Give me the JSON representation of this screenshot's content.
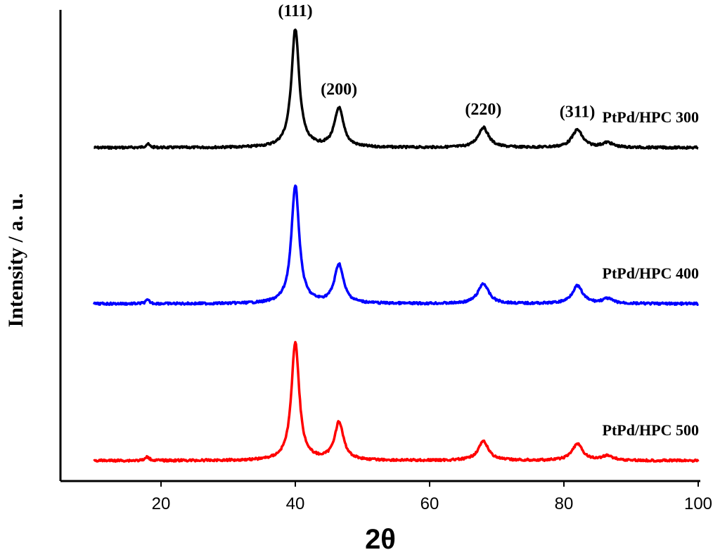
{
  "chart_data": {
    "type": "line",
    "title": "",
    "xlabel": "2θ",
    "ylabel": "Intensity / a. u.",
    "xlim": [
      5,
      100
    ],
    "xticks": [
      20,
      40,
      60,
      80,
      100
    ],
    "y_ticks_shown": false,
    "grid": false,
    "legend": "none",
    "peak_annotations": [
      {
        "label": "(111)",
        "x": 40.0
      },
      {
        "label": "(200)",
        "x": 46.5
      },
      {
        "label": "(220)",
        "x": 68.0
      },
      {
        "label": "(311)",
        "x": 82.0
      }
    ],
    "series": [
      {
        "name": "PtPd/HPC 300",
        "color": "#000000",
        "offset": 2.0,
        "peaks": [
          {
            "x": 18.0,
            "height": 0.03
          },
          {
            "x": 40.0,
            "height": 1.0
          },
          {
            "x": 46.5,
            "height": 0.33
          },
          {
            "x": 68.0,
            "height": 0.17
          },
          {
            "x": 82.0,
            "height": 0.15
          },
          {
            "x": 86.5,
            "height": 0.04
          }
        ]
      },
      {
        "name": "PtPd/HPC 400",
        "color": "#0000ff",
        "offset": 1.0,
        "peaks": [
          {
            "x": 18.0,
            "height": 0.03
          },
          {
            "x": 40.0,
            "height": 1.0
          },
          {
            "x": 46.5,
            "height": 0.33
          },
          {
            "x": 68.0,
            "height": 0.17
          },
          {
            "x": 82.0,
            "height": 0.15
          },
          {
            "x": 86.5,
            "height": 0.04
          }
        ]
      },
      {
        "name": "PtPd/HPC 500",
        "color": "#ff0000",
        "offset": 0.0,
        "peaks": [
          {
            "x": 18.0,
            "height": 0.03
          },
          {
            "x": 40.0,
            "height": 1.0
          },
          {
            "x": 46.5,
            "height": 0.32
          },
          {
            "x": 68.0,
            "height": 0.16
          },
          {
            "x": 82.0,
            "height": 0.14
          },
          {
            "x": 86.5,
            "height": 0.04
          }
        ]
      }
    ]
  }
}
